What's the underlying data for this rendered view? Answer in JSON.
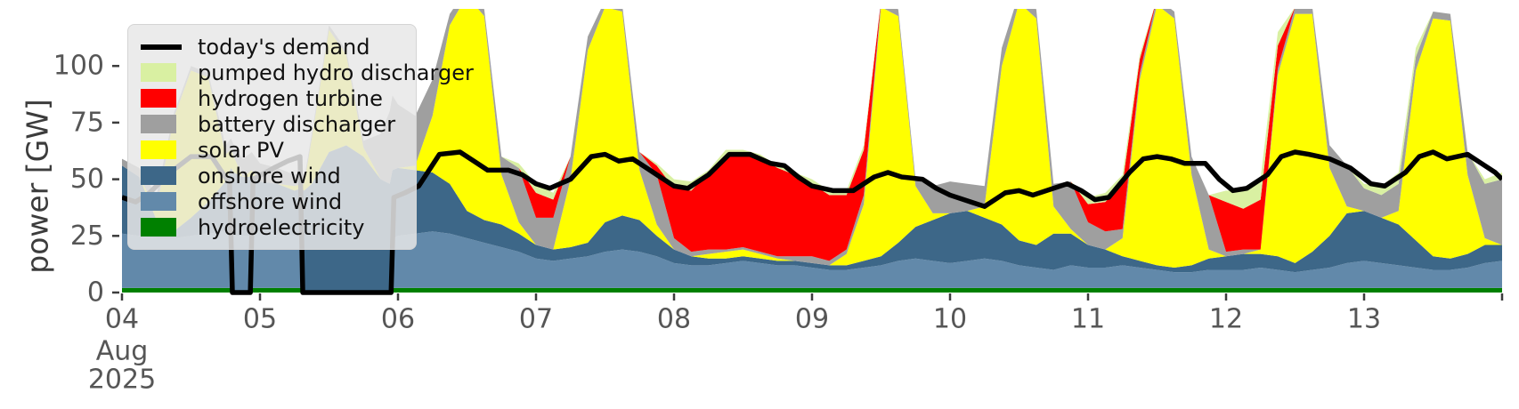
{
  "chart_data": {
    "type": "area",
    "stacked": true,
    "title": "",
    "ylabel": "power [GW]",
    "xlabel": "",
    "x_axis_month_label": "Aug",
    "x_axis_year_label": "2025",
    "xlim": [
      4,
      14
    ],
    "ylim": [
      0,
      125
    ],
    "grid": false,
    "legend_position": "upper left",
    "x_ticks": [
      {
        "day": 4,
        "label": "04"
      },
      {
        "day": 5,
        "label": "05"
      },
      {
        "day": 6,
        "label": "06"
      },
      {
        "day": 7,
        "label": "07"
      },
      {
        "day": 8,
        "label": "08"
      },
      {
        "day": 9,
        "label": "09"
      },
      {
        "day": 10,
        "label": "10"
      },
      {
        "day": 11,
        "label": "11"
      },
      {
        "day": 12,
        "label": "12"
      },
      {
        "day": 13,
        "label": "13"
      },
      {
        "day": 14,
        "label": ""
      }
    ],
    "y_ticks": [
      0,
      25,
      50,
      75,
      100
    ],
    "t_days_august_2025": [
      4.0,
      4.125,
      4.25,
      4.375,
      4.5,
      4.625,
      4.75,
      4.79,
      4.81,
      4.875,
      4.92,
      4.94,
      5.0,
      5.125,
      5.25,
      5.3,
      5.32,
      5.375,
      5.5,
      5.625,
      5.75,
      5.875,
      5.94,
      5.96,
      6.0,
      6.125,
      6.25,
      6.375,
      6.5,
      6.625,
      6.75,
      6.875,
      7.0,
      7.125,
      7.25,
      7.375,
      7.5,
      7.625,
      7.75,
      7.875,
      8.0,
      8.125,
      8.25,
      8.375,
      8.5,
      8.625,
      8.75,
      8.875,
      9.0,
      9.125,
      9.25,
      9.375,
      9.5,
      9.625,
      9.75,
      9.875,
      10.0,
      10.125,
      10.25,
      10.375,
      10.5,
      10.625,
      10.75,
      10.875,
      11.0,
      11.125,
      11.25,
      11.375,
      11.5,
      11.625,
      11.75,
      11.875,
      12.0,
      12.125,
      12.25,
      12.375,
      12.5,
      12.625,
      12.75,
      12.875,
      13.0,
      13.125,
      13.25,
      13.375,
      13.5,
      13.625,
      13.75,
      13.875,
      14.0
    ],
    "series": [
      {
        "name": "hydroelectricity",
        "color": "#008000",
        "values": [
          2,
          2,
          2,
          2,
          2,
          2,
          2,
          2,
          0,
          0,
          0,
          2,
          2,
          2,
          2,
          2,
          0,
          0,
          0,
          0,
          0,
          0,
          0,
          2,
          2,
          2,
          2,
          2,
          2,
          2,
          2,
          2,
          2,
          2,
          2,
          2,
          2,
          2,
          2,
          2,
          2,
          2,
          2,
          2,
          2,
          2,
          2,
          2,
          2,
          2,
          2,
          2,
          2,
          2,
          2,
          2,
          2,
          2,
          2,
          2,
          2,
          2,
          2,
          2,
          2,
          2,
          2,
          2,
          2,
          2,
          2,
          2,
          2,
          2,
          2,
          2,
          2,
          2,
          2,
          2,
          2,
          2,
          2,
          2,
          2,
          2,
          2,
          2,
          2
        ]
      },
      {
        "name": "offshore wind",
        "color": "#6289aa",
        "values": [
          24,
          23,
          22,
          22,
          23,
          24,
          25,
          25,
          25,
          25,
          25,
          25,
          25,
          24,
          23,
          22,
          0,
          0,
          0,
          0,
          0,
          0,
          0,
          22,
          23,
          24,
          25,
          24,
          22,
          20,
          18,
          16,
          13,
          12,
          13,
          14,
          16,
          17,
          16,
          14,
          11,
          10,
          10,
          11,
          12,
          11,
          10,
          10,
          9,
          8,
          8,
          9,
          10,
          12,
          13,
          12,
          11,
          12,
          13,
          12,
          10,
          9,
          8,
          10,
          9,
          9,
          10,
          9,
          8,
          7,
          7,
          8,
          8,
          8,
          9,
          8,
          7,
          8,
          9,
          11,
          12,
          11,
          10,
          9,
          8,
          8,
          9,
          11,
          12
        ]
      },
      {
        "name": "onshore wind",
        "color": "#3d6788",
        "values": [
          30,
          26,
          8,
          3,
          8,
          14,
          22,
          28,
          28,
          26,
          26,
          25,
          22,
          22,
          20,
          22,
          45,
          48,
          62,
          65,
          60,
          50,
          48,
          30,
          30,
          28,
          26,
          22,
          12,
          10,
          10,
          8,
          6,
          5,
          5,
          6,
          13,
          15,
          14,
          9,
          6,
          4,
          3,
          2,
          2,
          2,
          2,
          2,
          2,
          2,
          2,
          3,
          4,
          8,
          14,
          18,
          22,
          22,
          18,
          16,
          11,
          10,
          16,
          14,
          10,
          8,
          4,
          3,
          2,
          2,
          3,
          5,
          6,
          7,
          6,
          6,
          4,
          8,
          14,
          22,
          22,
          20,
          18,
          12,
          6,
          5,
          6,
          8,
          7
        ]
      },
      {
        "name": "solar PV",
        "color": "#ffff00",
        "values": [
          0,
          0,
          5,
          50,
          65,
          55,
          12,
          8,
          7,
          0,
          2,
          2,
          0,
          0,
          2,
          2,
          3,
          20,
          54,
          40,
          4,
          0,
          0,
          0,
          0,
          2,
          25,
          70,
          95,
          90,
          22,
          5,
          0,
          0,
          30,
          85,
          95,
          90,
          22,
          5,
          0,
          0,
          2,
          3,
          3,
          2,
          1,
          0,
          0,
          0,
          5,
          25,
          110,
          100,
          18,
          3,
          0,
          0,
          5,
          70,
          105,
          100,
          12,
          2,
          0,
          0,
          8,
          80,
          115,
          110,
          40,
          4,
          0,
          0,
          2,
          80,
          110,
          105,
          30,
          3,
          0,
          0,
          6,
          75,
          105,
          105,
          35,
          3,
          0
        ]
      },
      {
        "name": "battery discharger",
        "color": "#9f9f9f",
        "values": [
          3,
          4,
          6,
          2,
          2,
          2,
          4,
          5,
          5,
          8,
          8,
          8,
          8,
          7,
          5,
          5,
          2,
          2,
          2,
          2,
          3,
          20,
          32,
          33,
          28,
          22,
          16,
          5,
          3,
          3,
          8,
          24,
          12,
          14,
          10,
          6,
          3,
          3,
          8,
          22,
          5,
          2,
          2,
          1,
          1,
          1,
          1,
          2,
          3,
          2,
          2,
          4,
          3,
          3,
          3,
          12,
          14,
          12,
          9,
          8,
          4,
          4,
          10,
          21,
          10,
          8,
          4,
          3,
          3,
          3,
          8,
          24,
          2,
          2,
          0,
          3,
          3,
          3,
          10,
          18,
          10,
          10,
          12,
          6,
          3,
          3,
          10,
          24,
          29
        ]
      },
      {
        "name": "hydrogen turbine",
        "color": "#ff0000",
        "values": [
          0,
          0,
          0,
          0,
          0,
          0,
          0,
          0,
          0,
          0,
          0,
          0,
          0,
          0,
          0,
          0,
          0,
          0,
          0,
          0,
          0,
          0,
          0,
          0,
          0,
          0,
          0,
          0,
          0,
          0,
          0,
          0,
          11,
          8,
          0,
          0,
          0,
          0,
          0,
          4,
          22,
          27,
          34,
          42,
          41,
          41,
          39,
          36,
          32,
          29,
          24,
          20,
          0,
          0,
          0,
          0,
          0,
          0,
          0,
          0,
          0,
          0,
          0,
          0,
          8,
          13,
          20,
          6,
          0,
          0,
          0,
          0,
          22,
          18,
          22,
          10,
          0,
          0,
          0,
          0,
          0,
          0,
          0,
          0,
          0,
          0,
          0,
          0,
          0
        ]
      },
      {
        "name": "pumped hydro discharger",
        "color": "#d9f0a2",
        "values": [
          0,
          0,
          0,
          0,
          0,
          0,
          0,
          0,
          0,
          0,
          0,
          0,
          0,
          0,
          0,
          0,
          0,
          0,
          0,
          0,
          0,
          0,
          0,
          0,
          0,
          0,
          0,
          0,
          0,
          0,
          0,
          2,
          4,
          3,
          0,
          0,
          0,
          0,
          0,
          1,
          4,
          4,
          1,
          2,
          2,
          2,
          1,
          1,
          2,
          2,
          2,
          2,
          0,
          0,
          0,
          0,
          0,
          0,
          0,
          0,
          0,
          0,
          0,
          0,
          3,
          4,
          4,
          2,
          0,
          0,
          0,
          0,
          5,
          8,
          9,
          6,
          0,
          0,
          0,
          0,
          2,
          4,
          5,
          4,
          0,
          0,
          0,
          2,
          3
        ]
      }
    ],
    "demand_line": {
      "name": "today's demand",
      "color": "#000000",
      "points": [
        [
          4.0,
          42
        ],
        [
          4.1,
          40
        ],
        [
          4.2,
          44
        ],
        [
          4.35,
          53
        ],
        [
          4.5,
          60
        ],
        [
          4.65,
          60
        ],
        [
          4.78,
          48
        ],
        [
          4.8,
          0
        ],
        [
          4.93,
          0
        ],
        [
          4.95,
          50
        ],
        [
          5.1,
          55
        ],
        [
          5.2,
          58
        ],
        [
          5.29,
          60
        ],
        [
          5.31,
          0
        ],
        [
          5.95,
          0
        ],
        [
          5.97,
          42
        ],
        [
          6.05,
          44
        ],
        [
          6.15,
          47
        ],
        [
          6.3,
          61
        ],
        [
          6.45,
          62
        ],
        [
          6.55,
          58
        ],
        [
          6.65,
          54
        ],
        [
          6.8,
          54
        ],
        [
          6.9,
          52
        ],
        [
          7.0,
          48
        ],
        [
          7.1,
          46
        ],
        [
          7.25,
          50
        ],
        [
          7.4,
          60
        ],
        [
          7.5,
          61
        ],
        [
          7.6,
          58
        ],
        [
          7.7,
          59
        ],
        [
          7.8,
          55
        ],
        [
          7.9,
          51
        ],
        [
          8.0,
          47
        ],
        [
          8.1,
          46
        ],
        [
          8.25,
          52
        ],
        [
          8.4,
          61
        ],
        [
          8.55,
          61
        ],
        [
          8.7,
          57
        ],
        [
          8.8,
          56
        ],
        [
          8.9,
          51
        ],
        [
          9.0,
          47
        ],
        [
          9.15,
          45
        ],
        [
          9.3,
          45
        ],
        [
          9.45,
          51
        ],
        [
          9.55,
          53
        ],
        [
          9.65,
          51
        ],
        [
          9.8,
          50
        ],
        [
          9.9,
          46
        ],
        [
          10.0,
          43
        ],
        [
          10.15,
          40
        ],
        [
          10.25,
          38
        ],
        [
          10.4,
          44
        ],
        [
          10.5,
          45
        ],
        [
          10.6,
          43
        ],
        [
          10.75,
          46
        ],
        [
          10.85,
          48
        ],
        [
          10.95,
          45
        ],
        [
          11.05,
          41
        ],
        [
          11.15,
          42
        ],
        [
          11.3,
          53
        ],
        [
          11.4,
          59
        ],
        [
          11.5,
          60
        ],
        [
          11.6,
          59
        ],
        [
          11.7,
          57
        ],
        [
          11.85,
          57
        ],
        [
          11.95,
          50
        ],
        [
          12.05,
          45
        ],
        [
          12.15,
          46
        ],
        [
          12.3,
          52
        ],
        [
          12.4,
          60
        ],
        [
          12.5,
          62
        ],
        [
          12.6,
          61
        ],
        [
          12.75,
          59
        ],
        [
          12.9,
          55
        ],
        [
          13.05,
          48
        ],
        [
          13.15,
          47
        ],
        [
          13.3,
          53
        ],
        [
          13.4,
          60
        ],
        [
          13.5,
          62
        ],
        [
          13.6,
          59
        ],
        [
          13.75,
          61
        ],
        [
          13.85,
          57
        ],
        [
          13.95,
          53
        ],
        [
          14.0,
          50
        ]
      ]
    }
  },
  "legend": {
    "entries": [
      {
        "label": "today's demand",
        "color": "#000000",
        "swatch": "line"
      },
      {
        "label": "pumped hydro discharger",
        "color": "#d9f0a2",
        "swatch": "patch"
      },
      {
        "label": "hydrogen turbine",
        "color": "#ff0000",
        "swatch": "patch"
      },
      {
        "label": "battery discharger",
        "color": "#9f9f9f",
        "swatch": "patch"
      },
      {
        "label": "solar PV",
        "color": "#ffff00",
        "swatch": "patch"
      },
      {
        "label": "onshore wind",
        "color": "#3d6788",
        "swatch": "patch"
      },
      {
        "label": "offshore wind",
        "color": "#6289aa",
        "swatch": "patch"
      },
      {
        "label": "hydroelectricity",
        "color": "#008000",
        "swatch": "patch"
      }
    ]
  }
}
